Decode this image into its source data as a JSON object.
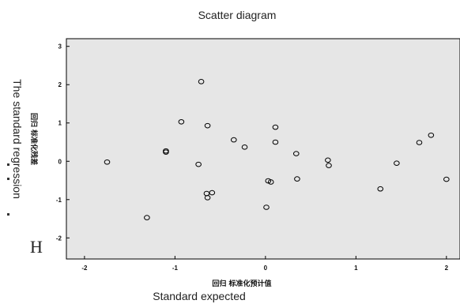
{
  "chart_data": {
    "type": "scatter",
    "title": "Scatter diagram",
    "xlabel": "回归 标准化预计值",
    "xlabel_en": "Standard expected",
    "ylabel": "回归 标准化残差",
    "ylabel_en": "The standard regression",
    "ylabel_fragment": "H",
    "xlim": [
      -2.2,
      2.15
    ],
    "ylim": [
      -2.55,
      3.2
    ],
    "xticks": [
      -2,
      -1,
      0,
      1,
      2
    ],
    "yticks": [
      -2,
      -1,
      0,
      1,
      2,
      3
    ],
    "grid": false,
    "legend": "none",
    "colors": {
      "plot_bg": "#e6e6e6",
      "marker": "#000000"
    },
    "points": [
      {
        "x": -1.75,
        "y": -0.02
      },
      {
        "x": -1.31,
        "y": -1.47
      },
      {
        "x": -1.1,
        "y": 0.27
      },
      {
        "x": -1.1,
        "y": 0.24
      },
      {
        "x": -0.93,
        "y": 1.03
      },
      {
        "x": -0.74,
        "y": -0.08
      },
      {
        "x": -0.71,
        "y": 2.08
      },
      {
        "x": -0.65,
        "y": -0.84
      },
      {
        "x": -0.64,
        "y": -0.95
      },
      {
        "x": -0.64,
        "y": 0.93
      },
      {
        "x": -0.59,
        "y": -0.82
      },
      {
        "x": -0.35,
        "y": 0.56
      },
      {
        "x": -0.23,
        "y": 0.37
      },
      {
        "x": 0.01,
        "y": -1.2
      },
      {
        "x": 0.03,
        "y": -0.51
      },
      {
        "x": 0.06,
        "y": -0.54
      },
      {
        "x": 0.11,
        "y": 0.89
      },
      {
        "x": 0.11,
        "y": 0.5
      },
      {
        "x": 0.34,
        "y": 0.2
      },
      {
        "x": 0.35,
        "y": -0.46
      },
      {
        "x": 0.69,
        "y": 0.03
      },
      {
        "x": 0.7,
        "y": -0.11
      },
      {
        "x": 1.27,
        "y": -0.72
      },
      {
        "x": 1.45,
        "y": -0.05
      },
      {
        "x": 1.7,
        "y": 0.49
      },
      {
        "x": 1.83,
        "y": 0.68
      },
      {
        "x": 2.0,
        "y": -0.47
      }
    ]
  }
}
